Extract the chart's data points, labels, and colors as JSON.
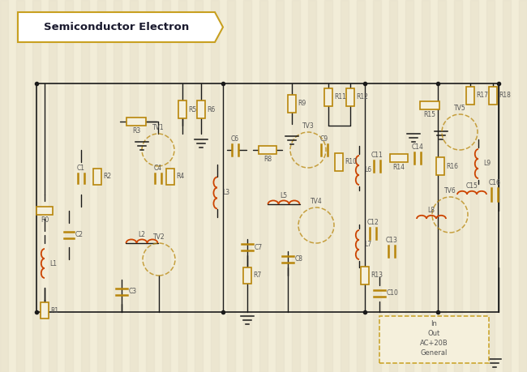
{
  "title": "Semiconductor Electron",
  "bg_color": "#f2edd8",
  "stripe_color": "#e8e2cc",
  "line_color": "#1a1a1a",
  "comp_color": "#b8860b",
  "coil_color": "#cc4400",
  "label_color": "#555555",
  "border_color": "#c8a020",
  "legend_border": "#c8a020",
  "white": "#ffffff",
  "xlim": [
    0,
    650
  ],
  "ylim": [
    0,
    459
  ]
}
